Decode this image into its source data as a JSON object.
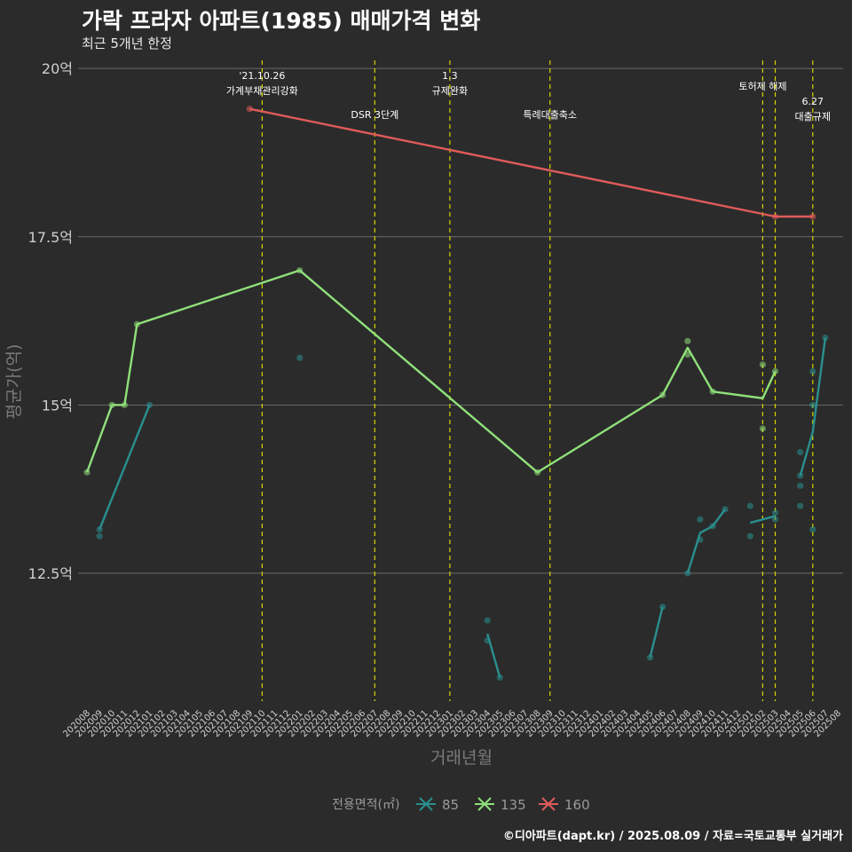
{
  "header": {
    "title": "가락 프라자 아파트(1985) 매매가격 변화",
    "subtitle": "최근 5개년 한정"
  },
  "caption": "©디아파트(dapt.kr) / 2025.08.09 / 자료=국토교통부 실거래가",
  "colors": {
    "background": "#2b2b2b",
    "grid": "#6a6a6a",
    "event_line": "#d4d400",
    "series_85": "#2a8f8f",
    "series_135": "#8fe07a",
    "series_160": "#e05a5a"
  },
  "chart_data": {
    "type": "line",
    "xlabel": "거래년월",
    "ylabel": "평균가(억)",
    "ylim": [
      10.6,
      20.2
    ],
    "y_ticks": [
      12.5,
      15,
      17.5,
      20
    ],
    "y_tick_labels": [
      "12.5억",
      "15억",
      "17.5억",
      "20억"
    ],
    "grid": "horizontal",
    "categories": [
      "202008",
      "202009",
      "202010",
      "202011",
      "202012",
      "202101",
      "202102",
      "202103",
      "202104",
      "202105",
      "202106",
      "202107",
      "202108",
      "202109",
      "202110",
      "202111",
      "202112",
      "202201",
      "202202",
      "202203",
      "202204",
      "202205",
      "202206",
      "202207",
      "202208",
      "202209",
      "202210",
      "202211",
      "202212",
      "202301",
      "202302",
      "202303",
      "202304",
      "202305",
      "202306",
      "202307",
      "202308",
      "202309",
      "202310",
      "202311",
      "202312",
      "202401",
      "202402",
      "202403",
      "202404",
      "202405",
      "202406",
      "202407",
      "202408",
      "202409",
      "202410",
      "202411",
      "202412",
      "202501",
      "202502",
      "202503",
      "202504",
      "202505",
      "202506",
      "202507",
      "202508"
    ],
    "events": [
      {
        "month": "202110",
        "label": "'21.10.26\n가계부채관리강화",
        "row": 0
      },
      {
        "month": "202207",
        "label": "DSR 3단계",
        "row": 2
      },
      {
        "month": "202301",
        "label": "1.3\n규제완화",
        "row": 0
      },
      {
        "month": "202309",
        "label": "특례대출축소",
        "row": 2
      },
      {
        "month": "202502",
        "label": "토허제 해제",
        "row": 1
      },
      {
        "month": "202503",
        "label": "",
        "row": 1
      },
      {
        "month": "202506",
        "label": "6.27\n대출규제",
        "row": 3
      }
    ],
    "series": [
      {
        "name": "85",
        "line_segments": [
          [
            [
              "202009",
              13.15
            ],
            [
              "202101",
              15.0
            ]
          ],
          [
            [
              "202304",
              11.6
            ],
            [
              "202305",
              10.95
            ]
          ],
          [
            [
              "202405",
              11.25
            ],
            [
              "202406",
              12.0
            ]
          ],
          [
            [
              "202408",
              12.5
            ],
            [
              "202409",
              13.1
            ],
            [
              "202410",
              13.2
            ],
            [
              "202411",
              13.45
            ]
          ],
          [
            [
              "202501",
              13.25
            ],
            [
              "202503",
              13.35
            ]
          ],
          [
            [
              "202505",
              13.95
            ],
            [
              "202506",
              14.6
            ],
            [
              "202507",
              16.0
            ]
          ]
        ],
        "points": [
          [
            "202009",
            13.15
          ],
          [
            "202009",
            13.05
          ],
          [
            "202101",
            15.0
          ],
          [
            "202201",
            15.7
          ],
          [
            "202304",
            11.8
          ],
          [
            "202304",
            11.5
          ],
          [
            "202305",
            10.95
          ],
          [
            "202405",
            11.25
          ],
          [
            "202406",
            12.0
          ],
          [
            "202408",
            12.5
          ],
          [
            "202409",
            13.3
          ],
          [
            "202409",
            13.0
          ],
          [
            "202410",
            13.2
          ],
          [
            "202411",
            13.45
          ],
          [
            "202501",
            13.5
          ],
          [
            "202501",
            13.05
          ],
          [
            "202503",
            13.4
          ],
          [
            "202503",
            13.3
          ],
          [
            "202505",
            14.3
          ],
          [
            "202505",
            13.95
          ],
          [
            "202505",
            13.8
          ],
          [
            "202505",
            13.5
          ],
          [
            "202506",
            15.5
          ],
          [
            "202506",
            15.0
          ],
          [
            "202506",
            13.15
          ],
          [
            "202507",
            16.0
          ]
        ]
      },
      {
        "name": "135",
        "line_segments": [
          [
            [
              "202008",
              14.0
            ],
            [
              "202010",
              15.0
            ],
            [
              "202011",
              15.0
            ],
            [
              "202012",
              16.2
            ],
            [
              "202201",
              17.0
            ],
            [
              "202308",
              14.0
            ],
            [
              "202406",
              15.15
            ],
            [
              "202408",
              15.85
            ],
            [
              "202410",
              15.2
            ],
            [
              "202502",
              15.1
            ],
            [
              "202503",
              15.5
            ]
          ]
        ],
        "points": [
          [
            "202008",
            14.0
          ],
          [
            "202010",
            15.0
          ],
          [
            "202011",
            15.0
          ],
          [
            "202012",
            16.2
          ],
          [
            "202201",
            17.0
          ],
          [
            "202308",
            14.0
          ],
          [
            "202406",
            15.15
          ],
          [
            "202408",
            15.95
          ],
          [
            "202408",
            15.75
          ],
          [
            "202410",
            15.2
          ],
          [
            "202502",
            15.6
          ],
          [
            "202502",
            14.65
          ],
          [
            "202503",
            15.5
          ]
        ]
      },
      {
        "name": "160",
        "line_segments": [
          [
            [
              "202109",
              19.4
            ],
            [
              "202503",
              17.8
            ],
            [
              "202506",
              17.8
            ]
          ]
        ],
        "points": [
          [
            "202109",
            19.4
          ],
          [
            "202503",
            17.8
          ],
          [
            "202506",
            17.8
          ]
        ]
      }
    ],
    "legend": {
      "title": "전용면적(㎡)",
      "placement": "bottom",
      "items": [
        "85",
        "135",
        "160"
      ]
    }
  }
}
